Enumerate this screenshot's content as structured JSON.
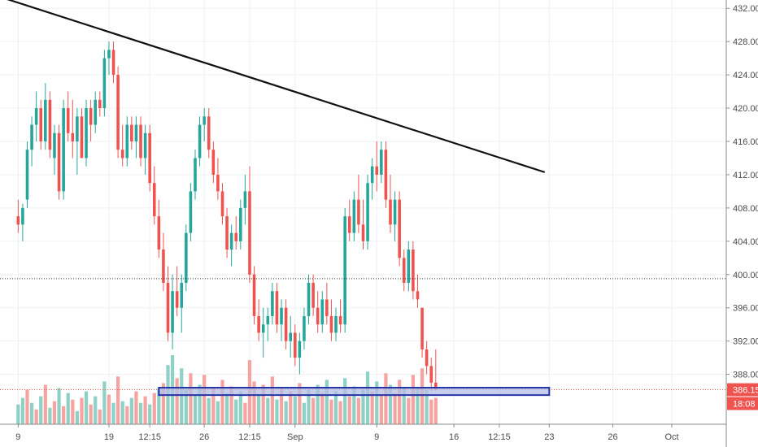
{
  "chart_data": {
    "type": "candlestick",
    "y_axis": {
      "ticks": [
        "432.00",
        "428.00",
        "424.00",
        "420.00",
        "416.00",
        "412.00",
        "408.00",
        "404.00",
        "400.00",
        "396.00",
        "392.00",
        "388.00"
      ],
      "range": [
        382,
        433
      ],
      "position": "right"
    },
    "x_axis": {
      "ticks": [
        {
          "label": "9",
          "x": 0
        },
        {
          "label": "19",
          "x": 20
        },
        {
          "label": "12:15",
          "x": 29
        },
        {
          "label": "26",
          "x": 41
        },
        {
          "label": "12:15",
          "x": 51
        },
        {
          "label": "Sep",
          "x": 61
        },
        {
          "label": "9",
          "x": 79
        },
        {
          "label": "16",
          "x": 96
        },
        {
          "label": "12:15",
          "x": 106
        },
        {
          "label": "23",
          "x": 117
        },
        {
          "label": "26",
          "x": 131
        },
        {
          "label": "Oct",
          "x": 144
        }
      ],
      "range": [
        -4,
        156
      ]
    },
    "grid": true,
    "colors": {
      "up": "#26a69a",
      "down": "#ef5350",
      "vol_up": "#8fd1c7",
      "vol_down": "#f6a4a1",
      "trendline": "#111111",
      "support_fill": "#b3bde6",
      "support_border": "#2434a6",
      "price_tag": "#ef5350",
      "timer_tag": "#ef5350"
    },
    "trendline": {
      "x1": -3,
      "y1": 433.2,
      "x2": 116,
      "y2": 412.3
    },
    "horizontal_level": {
      "value": 399.5
    },
    "support_zone": {
      "x1": 31,
      "x2": 117,
      "y_low": 385.7,
      "y_high": 386.2
    },
    "current_price": {
      "value": 386.15,
      "label": "386.15",
      "timer": "18:08"
    },
    "candles": [
      [
        0,
        407,
        409,
        405,
        406
      ],
      [
        1,
        406,
        408.5,
        404,
        408
      ],
      [
        2,
        409,
        416,
        408,
        415
      ],
      [
        3,
        415,
        419,
        413,
        418
      ],
      [
        4,
        418,
        422,
        416,
        420
      ],
      [
        5,
        420,
        421,
        415,
        416
      ],
      [
        6,
        416,
        423,
        415,
        421
      ],
      [
        7,
        421,
        422,
        414,
        415
      ],
      [
        8,
        414,
        418,
        412,
        417
      ],
      [
        9,
        417,
        418,
        409,
        410
      ],
      [
        10,
        410,
        421,
        409,
        420
      ],
      [
        11,
        420,
        422,
        416,
        417
      ],
      [
        12,
        417,
        421,
        414,
        416
      ],
      [
        13,
        416,
        420,
        412,
        419
      ],
      [
        14,
        419,
        420,
        414,
        414
      ],
      [
        15,
        414,
        421,
        413,
        420
      ],
      [
        16,
        420,
        421,
        416,
        418
      ],
      [
        17,
        418,
        422,
        417,
        421
      ],
      [
        18,
        421,
        422,
        419,
        420
      ],
      [
        19,
        420,
        427,
        419,
        426
      ],
      [
        20,
        426,
        428,
        424,
        427
      ],
      [
        21,
        427,
        428,
        423,
        424
      ],
      [
        22,
        424,
        425,
        414,
        415
      ],
      [
        23,
        415,
        418,
        413,
        414
      ],
      [
        24,
        414,
        419,
        413,
        418
      ],
      [
        25,
        418,
        419,
        415,
        416
      ],
      [
        26,
        416,
        419,
        414,
        418
      ],
      [
        27,
        418,
        419,
        413,
        414
      ],
      [
        28,
        414,
        418,
        412,
        417
      ],
      [
        29,
        417,
        418,
        410,
        411
      ],
      [
        30,
        411,
        413,
        406,
        407
      ],
      [
        31,
        407,
        409,
        402,
        403
      ],
      [
        32,
        403,
        405,
        398,
        399
      ],
      [
        33,
        399,
        401,
        392,
        393
      ],
      [
        34,
        393,
        400,
        391,
        398
      ],
      [
        35,
        398,
        401,
        395,
        396
      ],
      [
        36,
        396,
        400,
        393,
        399
      ],
      [
        37,
        399,
        406,
        398,
        405
      ],
      [
        38,
        405,
        411,
        404,
        410
      ],
      [
        39,
        410,
        415,
        409,
        414
      ],
      [
        40,
        414,
        419,
        413,
        418
      ],
      [
        41,
        418,
        420,
        416,
        419
      ],
      [
        42,
        419,
        420,
        414,
        415
      ],
      [
        43,
        415,
        416,
        411,
        412
      ],
      [
        44,
        412,
        414,
        409,
        410
      ],
      [
        45,
        410,
        411,
        406,
        407
      ],
      [
        46,
        407,
        408,
        402,
        403
      ],
      [
        47,
        403,
        406,
        401,
        405
      ],
      [
        48,
        405,
        407,
        403,
        404
      ],
      [
        49,
        404,
        409,
        403,
        408
      ],
      [
        50,
        408,
        412,
        406,
        410
      ],
      [
        51,
        410,
        413,
        399,
        400
      ],
      [
        52,
        400,
        401,
        394,
        395
      ],
      [
        53,
        395,
        397,
        392,
        393
      ],
      [
        54,
        393,
        396,
        390,
        394
      ],
      [
        55,
        394,
        396,
        392,
        395
      ],
      [
        56,
        395,
        399,
        394,
        398
      ],
      [
        57,
        398,
        399,
        393,
        394
      ],
      [
        58,
        394,
        397,
        392,
        396
      ],
      [
        59,
        396,
        397,
        391,
        392
      ],
      [
        60,
        392,
        395,
        390,
        393
      ],
      [
        61,
        393,
        394,
        389,
        390
      ],
      [
        62,
        390,
        393,
        388,
        392
      ],
      [
        63,
        392,
        396,
        391,
        395
      ],
      [
        64,
        395,
        400,
        394,
        399
      ],
      [
        65,
        399,
        400,
        395,
        396
      ],
      [
        66,
        396,
        398,
        393,
        394
      ],
      [
        67,
        394,
        398,
        393,
        397
      ],
      [
        68,
        397,
        399,
        394,
        395
      ],
      [
        69,
        395,
        397,
        392,
        393
      ],
      [
        70,
        393,
        396,
        392,
        395
      ],
      [
        71,
        395,
        397,
        393,
        394
      ],
      [
        72,
        394,
        408,
        393,
        407
      ],
      [
        73,
        407,
        409,
        404,
        405
      ],
      [
        74,
        405,
        410,
        404,
        409
      ],
      [
        75,
        409,
        412,
        405,
        406
      ],
      [
        76,
        406,
        409,
        403,
        404
      ],
      [
        77,
        404,
        412,
        403,
        411
      ],
      [
        78,
        411,
        414,
        409,
        413
      ],
      [
        79,
        413,
        416,
        410,
        412
      ],
      [
        80,
        412,
        416,
        411,
        415
      ],
      [
        81,
        415,
        416,
        408,
        409
      ],
      [
        82,
        409,
        412,
        405,
        406
      ],
      [
        83,
        406,
        410,
        404,
        409
      ],
      [
        84,
        409,
        410,
        401,
        402
      ],
      [
        85,
        402,
        403,
        398,
        399
      ],
      [
        86,
        399,
        404,
        398,
        403
      ],
      [
        87,
        403,
        404,
        397,
        398
      ],
      [
        88,
        398,
        400,
        396,
        397
      ],
      [
        89,
        396,
        396,
        390,
        391
      ],
      [
        90,
        391,
        392,
        388,
        389
      ],
      [
        91,
        389,
        390,
        386,
        387
      ],
      [
        92,
        387,
        391,
        386,
        386.15
      ]
    ],
    "volume": [
      [
        0,
        1.2,
        "u"
      ],
      [
        1,
        1.6,
        "u"
      ],
      [
        2,
        2.1,
        "d"
      ],
      [
        3,
        1.3,
        "u"
      ],
      [
        4,
        0.9,
        "d"
      ],
      [
        5,
        1.7,
        "u"
      ],
      [
        6,
        2.4,
        "d"
      ],
      [
        7,
        1.0,
        "u"
      ],
      [
        8,
        1.4,
        "d"
      ],
      [
        9,
        2.2,
        "u"
      ],
      [
        10,
        1.1,
        "d"
      ],
      [
        11,
        1.9,
        "u"
      ],
      [
        12,
        1.5,
        "d"
      ],
      [
        13,
        0.8,
        "u"
      ],
      [
        14,
        1.6,
        "d"
      ],
      [
        15,
        2.0,
        "u"
      ],
      [
        16,
        1.2,
        "d"
      ],
      [
        17,
        1.7,
        "u"
      ],
      [
        18,
        0.9,
        "d"
      ],
      [
        19,
        2.6,
        "u"
      ],
      [
        20,
        1.8,
        "d"
      ],
      [
        21,
        1.3,
        "u"
      ],
      [
        22,
        2.9,
        "d"
      ],
      [
        23,
        1.4,
        "u"
      ],
      [
        24,
        1.1,
        "d"
      ],
      [
        25,
        1.6,
        "u"
      ],
      [
        26,
        2.0,
        "d"
      ],
      [
        27,
        1.3,
        "u"
      ],
      [
        28,
        1.7,
        "d"
      ],
      [
        29,
        1.2,
        "u"
      ],
      [
        30,
        1.9,
        "d"
      ],
      [
        31,
        2.2,
        "u"
      ],
      [
        32,
        2.5,
        "d"
      ],
      [
        33,
        3.6,
        "u"
      ],
      [
        34,
        4.2,
        "u"
      ],
      [
        35,
        2.8,
        "d"
      ],
      [
        36,
        3.4,
        "u"
      ],
      [
        37,
        2.1,
        "u"
      ],
      [
        38,
        3.1,
        "d"
      ],
      [
        39,
        1.8,
        "u"
      ],
      [
        40,
        2.4,
        "u"
      ],
      [
        41,
        3.0,
        "d"
      ],
      [
        42,
        1.6,
        "u"
      ],
      [
        43,
        2.2,
        "d"
      ],
      [
        44,
        1.4,
        "u"
      ],
      [
        45,
        2.7,
        "d"
      ],
      [
        46,
        1.9,
        "u"
      ],
      [
        47,
        2.3,
        "d"
      ],
      [
        48,
        1.5,
        "u"
      ],
      [
        49,
        2.0,
        "u"
      ],
      [
        50,
        1.3,
        "d"
      ],
      [
        51,
        3.9,
        "d"
      ],
      [
        52,
        2.6,
        "d"
      ],
      [
        53,
        1.8,
        "u"
      ],
      [
        54,
        2.4,
        "d"
      ],
      [
        55,
        1.6,
        "u"
      ],
      [
        56,
        2.9,
        "d"
      ],
      [
        57,
        1.5,
        "u"
      ],
      [
        58,
        2.2,
        "d"
      ],
      [
        59,
        1.4,
        "u"
      ],
      [
        60,
        2.0,
        "d"
      ],
      [
        61,
        1.7,
        "u"
      ],
      [
        62,
        2.5,
        "d"
      ],
      [
        63,
        1.3,
        "u"
      ],
      [
        64,
        2.1,
        "u"
      ],
      [
        65,
        1.6,
        "d"
      ],
      [
        66,
        2.4,
        "u"
      ],
      [
        67,
        1.9,
        "d"
      ],
      [
        68,
        2.7,
        "u"
      ],
      [
        69,
        1.5,
        "d"
      ],
      [
        70,
        2.0,
        "u"
      ],
      [
        71,
        1.4,
        "d"
      ],
      [
        72,
        2.8,
        "u"
      ],
      [
        73,
        1.7,
        "d"
      ],
      [
        74,
        2.3,
        "u"
      ],
      [
        75,
        1.6,
        "d"
      ],
      [
        76,
        2.1,
        "u"
      ],
      [
        77,
        3.2,
        "u"
      ],
      [
        78,
        2.0,
        "d"
      ],
      [
        79,
        2.6,
        "u"
      ],
      [
        80,
        1.8,
        "d"
      ],
      [
        81,
        3.1,
        "d"
      ],
      [
        82,
        2.4,
        "u"
      ],
      [
        83,
        1.9,
        "d"
      ],
      [
        84,
        2.7,
        "d"
      ],
      [
        85,
        2.2,
        "u"
      ],
      [
        86,
        1.6,
        "d"
      ],
      [
        87,
        3.0,
        "d"
      ],
      [
        88,
        2.2,
        "u"
      ],
      [
        89,
        3.4,
        "d"
      ],
      [
        90,
        2.1,
        "u"
      ],
      [
        91,
        1.5,
        "d"
      ],
      [
        92,
        1.6,
        "d"
      ]
    ]
  }
}
